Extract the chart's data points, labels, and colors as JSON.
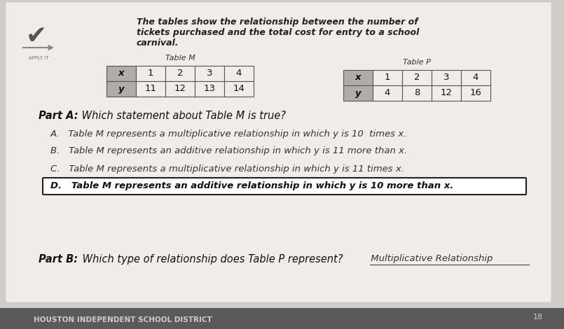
{
  "bg_color": "#d0ccc8",
  "paper_color": "#f0ede8",
  "title_text": "The tables show the relationship between the number of\ntickets purchased and the total cost for entry to a school\ncarnival.",
  "table_m_label": "Table M",
  "table_p_label": "Table P",
  "table_m_x": [
    "x",
    "1",
    "2",
    "3",
    "4"
  ],
  "table_m_y": [
    "y",
    "11",
    "12",
    "13",
    "14"
  ],
  "table_p_x": [
    "x",
    "1",
    "2",
    "3",
    "4"
  ],
  "table_p_y": [
    "y",
    "4",
    "8",
    "12",
    "16"
  ],
  "header_bg": "#b0aca8",
  "cell_bg": "#f0ede8",
  "part_a_label": "Part A:",
  "part_a_question": " Which statement about Table M is true?",
  "choices": [
    "A.   Table M represents a multiplicative relationship in which y is 10  times x.",
    "B.   Table M represents an additive relationship in which y is 11 more than x.",
    "C.   Table M represents a multiplicative relationship in which y is 11 times x.",
    "D.   Table M represents an additive relationship in which y is 10 more than x."
  ],
  "correct_choice_idx": 3,
  "part_b_label": "Part B:",
  "part_b_question": " Which type of relationship does Table P represent?",
  "part_b_answer": " Multiplicative Relationship",
  "footer_text": "HOUSTON INDEPENDENT SCHOOL DISTRICT",
  "footer_bg": "#5a5a5a",
  "footer_text_color": "#cccccc",
  "page_num": "18"
}
